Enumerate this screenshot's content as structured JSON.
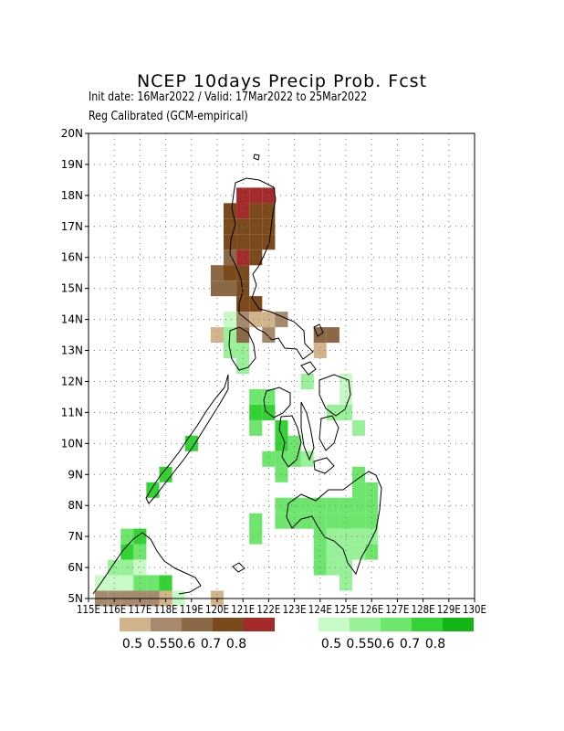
{
  "title": "NCEP 10days Precip Prob. Fcst",
  "init_line": "Init date: 16Mar2022 / Valid: 17Mar2022 to 25Mar2022",
  "calib_line": "Reg Calibrated (GCM-empirical)",
  "map": {
    "lon_range": [
      115,
      130
    ],
    "lat_range": [
      5,
      20
    ],
    "grid": "dotted",
    "lat_labels": [
      "5N",
      "6N",
      "7N",
      "8N",
      "9N",
      "10N",
      "11N",
      "12N",
      "13N",
      "14N",
      "15N",
      "16N",
      "17N",
      "18N",
      "19N",
      "20N"
    ],
    "lon_labels": [
      "115E",
      "116E",
      "117E",
      "118E",
      "119E",
      "120E",
      "121E",
      "122E",
      "123E",
      "124E",
      "125E",
      "126E",
      "127E",
      "128E",
      "129E",
      "130E"
    ],
    "dry_colors": [
      "#d2b48c",
      "#a68a6e",
      "#8b6946",
      "#7a4a1c",
      "#a52a2a"
    ],
    "wet_colors": [
      "#c8fac8",
      "#98f098",
      "#6ee66e",
      "#34d234",
      "#14b414"
    ],
    "dry_cells": [
      {
        "lon": 120.5,
        "lat": 17.5,
        "level": 3
      },
      {
        "lon": 120.5,
        "lat": 17.0,
        "level": 3
      },
      {
        "lon": 120.5,
        "lat": 16.5,
        "level": 3
      },
      {
        "lon": 121.0,
        "lat": 18.0,
        "level": 4
      },
      {
        "lon": 121.5,
        "lat": 18.0,
        "level": 4
      },
      {
        "lon": 122.0,
        "lat": 18.0,
        "level": 4
      },
      {
        "lon": 121.0,
        "lat": 17.5,
        "level": 4
      },
      {
        "lon": 121.5,
        "lat": 17.5,
        "level": 3
      },
      {
        "lon": 122.0,
        "lat": 17.5,
        "level": 3
      },
      {
        "lon": 121.0,
        "lat": 17.0,
        "level": 3
      },
      {
        "lon": 121.5,
        "lat": 17.0,
        "level": 3
      },
      {
        "lon": 122.0,
        "lat": 17.0,
        "level": 3
      },
      {
        "lon": 121.0,
        "lat": 16.5,
        "level": 3
      },
      {
        "lon": 121.5,
        "lat": 16.5,
        "level": 3
      },
      {
        "lon": 122.0,
        "lat": 16.5,
        "level": 3
      },
      {
        "lon": 120.5,
        "lat": 16.0,
        "level": 2
      },
      {
        "lon": 121.0,
        "lat": 16.0,
        "level": 4
      },
      {
        "lon": 121.5,
        "lat": 16.0,
        "level": 3
      },
      {
        "lon": 120.0,
        "lat": 15.5,
        "level": 2
      },
      {
        "lon": 120.5,
        "lat": 15.5,
        "level": 3
      },
      {
        "lon": 121.0,
        "lat": 15.5,
        "level": 3
      },
      {
        "lon": 120.0,
        "lat": 15.0,
        "level": 2
      },
      {
        "lon": 120.5,
        "lat": 15.0,
        "level": 2
      },
      {
        "lon": 121.0,
        "lat": 15.0,
        "level": 3
      },
      {
        "lon": 121.0,
        "lat": 14.5,
        "level": 3
      },
      {
        "lon": 121.5,
        "lat": 14.5,
        "level": 3
      },
      {
        "lon": 121.0,
        "lat": 14.0,
        "level": 1
      },
      {
        "lon": 121.5,
        "lat": 14.0,
        "level": 0
      },
      {
        "lon": 122.0,
        "lat": 14.0,
        "level": 0
      },
      {
        "lon": 122.5,
        "lat": 14.0,
        "level": 1
      },
      {
        "lon": 120.0,
        "lat": 13.5,
        "level": 0
      },
      {
        "lon": 121.0,
        "lat": 13.5,
        "level": 2
      },
      {
        "lon": 122.0,
        "lat": 13.5,
        "level": 1
      },
      {
        "lon": 124.0,
        "lat": 13.5,
        "level": 2
      },
      {
        "lon": 124.5,
        "lat": 13.5,
        "level": 2
      },
      {
        "lon": 124.0,
        "lat": 13.0,
        "level": 0
      },
      {
        "lon": 115.5,
        "lat": 5.0,
        "level": 1
      },
      {
        "lon": 116.0,
        "lat": 5.0,
        "level": 1
      },
      {
        "lon": 116.5,
        "lat": 5.0,
        "level": 1
      },
      {
        "lon": 117.0,
        "lat": 5.0,
        "level": 1
      },
      {
        "lon": 117.5,
        "lat": 5.0,
        "level": 1
      },
      {
        "lon": 118.0,
        "lat": 5.0,
        "level": 0
      },
      {
        "lon": 120.0,
        "lat": 5.0,
        "level": 0
      }
    ],
    "wet_cells": [
      {
        "lon": 120.5,
        "lat": 14.0,
        "level": 0
      },
      {
        "lon": 120.5,
        "lat": 13.5,
        "level": 1
      },
      {
        "lon": 120.5,
        "lat": 13.0,
        "level": 1
      },
      {
        "lon": 121.0,
        "lat": 12.5,
        "level": 1
      },
      {
        "lon": 121.0,
        "lat": 13.0,
        "level": 1
      },
      {
        "lon": 121.5,
        "lat": 11.5,
        "level": 2
      },
      {
        "lon": 122.0,
        "lat": 11.5,
        "level": 2
      },
      {
        "lon": 121.5,
        "lat": 11.0,
        "level": 3
      },
      {
        "lon": 122.0,
        "lat": 11.0,
        "level": 3
      },
      {
        "lon": 121.5,
        "lat": 10.5,
        "level": 2
      },
      {
        "lon": 122.5,
        "lat": 10.5,
        "level": 3
      },
      {
        "lon": 122.5,
        "lat": 10.0,
        "level": 3
      },
      {
        "lon": 123.0,
        "lat": 10.0,
        "level": 2
      },
      {
        "lon": 122.5,
        "lat": 9.5,
        "level": 2
      },
      {
        "lon": 123.0,
        "lat": 9.5,
        "level": 2
      },
      {
        "lon": 123.5,
        "lat": 9.5,
        "level": 1
      },
      {
        "lon": 122.0,
        "lat": 9.5,
        "level": 2
      },
      {
        "lon": 122.5,
        "lat": 9.0,
        "level": 2
      },
      {
        "lon": 123.5,
        "lat": 12.0,
        "level": 1
      },
      {
        "lon": 125.0,
        "lat": 12.0,
        "level": 0
      },
      {
        "lon": 125.0,
        "lat": 11.5,
        "level": 0
      },
      {
        "lon": 124.5,
        "lat": 11.0,
        "level": 1
      },
      {
        "lon": 125.0,
        "lat": 11.0,
        "level": 1
      },
      {
        "lon": 125.5,
        "lat": 10.5,
        "level": 1
      },
      {
        "lon": 122.5,
        "lat": 8.0,
        "level": 2
      },
      {
        "lon": 123.0,
        "lat": 8.0,
        "level": 2
      },
      {
        "lon": 123.5,
        "lat": 8.0,
        "level": 2
      },
      {
        "lon": 124.0,
        "lat": 8.0,
        "level": 2
      },
      {
        "lon": 124.5,
        "lat": 8.0,
        "level": 2
      },
      {
        "lon": 125.0,
        "lat": 8.0,
        "level": 2
      },
      {
        "lon": 125.5,
        "lat": 8.0,
        "level": 2
      },
      {
        "lon": 126.0,
        "lat": 8.0,
        "level": 2
      },
      {
        "lon": 122.5,
        "lat": 7.5,
        "level": 2
      },
      {
        "lon": 123.0,
        "lat": 7.5,
        "level": 2
      },
      {
        "lon": 123.5,
        "lat": 7.5,
        "level": 2
      },
      {
        "lon": 124.0,
        "lat": 7.5,
        "level": 2
      },
      {
        "lon": 124.5,
        "lat": 7.5,
        "level": 2
      },
      {
        "lon": 125.0,
        "lat": 7.5,
        "level": 2
      },
      {
        "lon": 125.5,
        "lat": 7.5,
        "level": 2
      },
      {
        "lon": 126.0,
        "lat": 7.5,
        "level": 2
      },
      {
        "lon": 125.5,
        "lat": 8.5,
        "level": 2
      },
      {
        "lon": 126.0,
        "lat": 8.5,
        "level": 2
      },
      {
        "lon": 125.5,
        "lat": 9.0,
        "level": 2
      },
      {
        "lon": 121.5,
        "lat": 7.5,
        "level": 2
      },
      {
        "lon": 121.5,
        "lat": 7.0,
        "level": 2
      },
      {
        "lon": 124.0,
        "lat": 7.0,
        "level": 2
      },
      {
        "lon": 124.5,
        "lat": 7.0,
        "level": 1
      },
      {
        "lon": 125.0,
        "lat": 7.0,
        "level": 1
      },
      {
        "lon": 125.5,
        "lat": 7.0,
        "level": 1
      },
      {
        "lon": 126.0,
        "lat": 7.0,
        "level": 1
      },
      {
        "lon": 124.0,
        "lat": 6.5,
        "level": 2
      },
      {
        "lon": 124.5,
        "lat": 6.5,
        "level": 1
      },
      {
        "lon": 125.0,
        "lat": 6.5,
        "level": 1
      },
      {
        "lon": 125.5,
        "lat": 6.5,
        "level": 1
      },
      {
        "lon": 126.0,
        "lat": 6.5,
        "level": 2
      },
      {
        "lon": 124.0,
        "lat": 6.0,
        "level": 2
      },
      {
        "lon": 124.5,
        "lat": 6.0,
        "level": 1
      },
      {
        "lon": 125.0,
        "lat": 6.0,
        "level": 1
      },
      {
        "lon": 125.0,
        "lat": 5.5,
        "level": 1
      },
      {
        "lon": 118.0,
        "lat": 9.0,
        "level": 3
      },
      {
        "lon": 117.5,
        "lat": 8.5,
        "level": 3
      },
      {
        "lon": 119.0,
        "lat": 10.0,
        "level": 3
      },
      {
        "lon": 116.5,
        "lat": 7.0,
        "level": 2
      },
      {
        "lon": 117.0,
        "lat": 7.0,
        "level": 3
      },
      {
        "lon": 116.5,
        "lat": 6.5,
        "level": 3
      },
      {
        "lon": 117.0,
        "lat": 6.5,
        "level": 2
      },
      {
        "lon": 116.0,
        "lat": 6.0,
        "level": 1
      },
      {
        "lon": 116.5,
        "lat": 6.0,
        "level": 1
      },
      {
        "lon": 117.0,
        "lat": 6.0,
        "level": 0
      },
      {
        "lon": 115.5,
        "lat": 5.5,
        "level": 0
      },
      {
        "lon": 116.0,
        "lat": 5.5,
        "level": 0
      },
      {
        "lon": 116.5,
        "lat": 5.5,
        "level": 0
      },
      {
        "lon": 117.0,
        "lat": 5.5,
        "level": 2
      },
      {
        "lon": 117.5,
        "lat": 5.5,
        "level": 2
      },
      {
        "lon": 118.0,
        "lat": 5.5,
        "level": 3
      },
      {
        "lon": 118.5,
        "lat": 5.0,
        "level": 0
      }
    ]
  },
  "legend": {
    "dry_labels": [
      "0.5",
      "0.55",
      "0.6",
      "0.7",
      "0.8"
    ],
    "wet_labels": [
      "0.5",
      "0.55",
      "0.6",
      "0.7",
      "0.8"
    ]
  }
}
